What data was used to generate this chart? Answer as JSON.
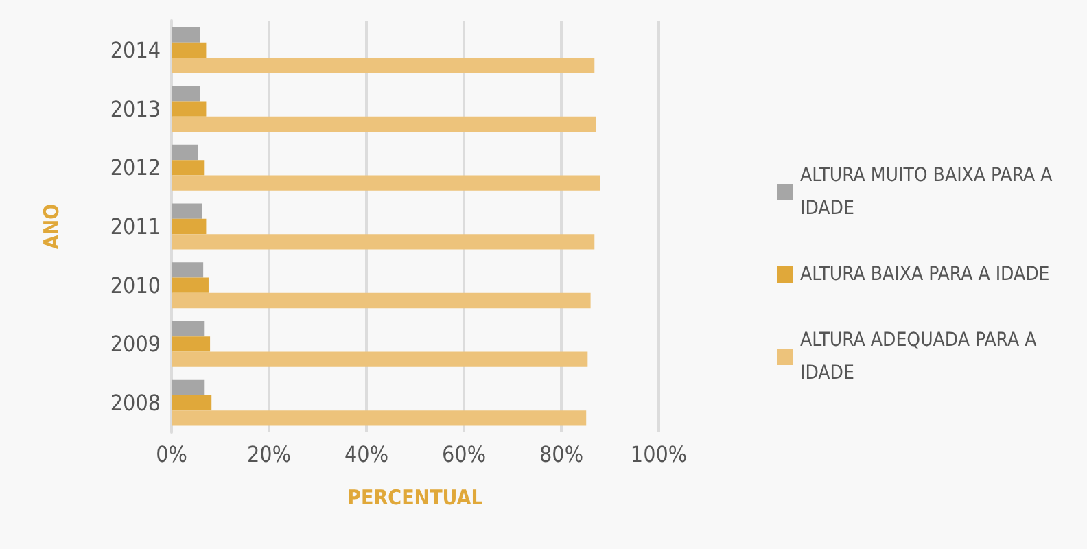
{
  "chart_data": {
    "type": "bar",
    "orientation": "horizontal",
    "xlabel": "PERCENTUAL",
    "ylabel": "ANO",
    "categories": [
      "2014",
      "2013",
      "2012",
      "2011",
      "2010",
      "2009",
      "2008"
    ],
    "series": [
      {
        "name": "ALTURA MUITO BAIXA PARA A IDADE",
        "color": "#a6a6a6",
        "values": [
          5.9,
          5.9,
          5.4,
          6.2,
          6.5,
          6.8,
          6.8
        ]
      },
      {
        "name": "ALTURA BAIXA PARA A IDADE",
        "color": "#e0a83a",
        "values": [
          7.1,
          7.1,
          6.8,
          7.1,
          7.6,
          7.9,
          8.2
        ]
      },
      {
        "name": "ALTURA ADEQUADA PARA A IDADE",
        "color": "#edc37b",
        "values": [
          86.8,
          87.1,
          88.0,
          86.8,
          86.0,
          85.4,
          85.1
        ]
      }
    ],
    "xlim": [
      0,
      100
    ],
    "xticks": [
      {
        "value": 0,
        "label": "0%"
      },
      {
        "value": 20,
        "label": "20%"
      },
      {
        "value": 40,
        "label": "40%"
      },
      {
        "value": 60,
        "label": "60%"
      },
      {
        "value": 80,
        "label": "80%"
      },
      {
        "value": 100,
        "label": "100%"
      }
    ],
    "grid": "x",
    "legend": "right"
  }
}
